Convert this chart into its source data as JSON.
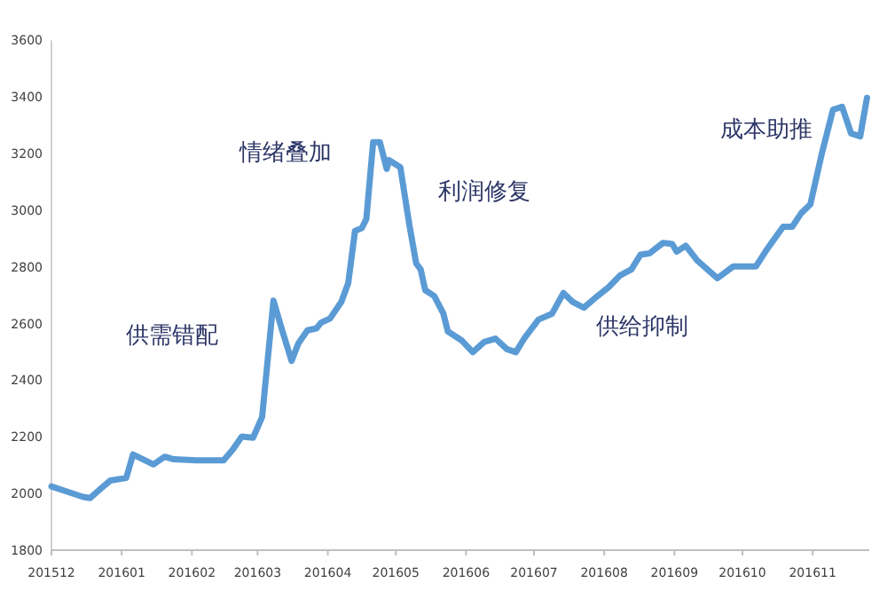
{
  "chart_data": {
    "type": "line",
    "x": [
      "2015-12-01",
      "2015-12-07",
      "2015-12-15",
      "2015-12-18",
      "2015-12-23",
      "2015-12-27",
      "2016-01-03",
      "2016-01-06",
      "2016-01-15",
      "2016-01-20",
      "2016-01-24",
      "2016-02-03",
      "2016-02-15",
      "2016-02-19",
      "2016-02-23",
      "2016-02-28",
      "2016-03-03",
      "2016-03-08",
      "2016-03-12",
      "2016-03-16",
      "2016-03-19",
      "2016-03-23",
      "2016-03-27",
      "2016-03-29",
      "2016-04-02",
      "2016-04-07",
      "2016-04-10",
      "2016-04-13",
      "2016-04-16",
      "2016-04-18",
      "2016-04-21",
      "2016-04-24",
      "2016-04-27",
      "2016-04-28",
      "2016-05-03",
      "2016-05-07",
      "2016-05-10",
      "2016-05-12",
      "2016-05-14",
      "2016-05-18",
      "2016-05-22",
      "2016-05-24",
      "2016-05-30",
      "2016-06-04",
      "2016-06-09",
      "2016-06-14",
      "2016-06-19",
      "2016-06-23",
      "2016-06-27",
      "2016-07-03",
      "2016-07-09",
      "2016-07-14",
      "2016-07-18",
      "2016-07-23",
      "2016-07-29",
      "2016-08-03",
      "2016-08-08",
      "2016-08-13",
      "2016-08-17",
      "2016-08-21",
      "2016-08-27",
      "2016-08-31",
      "2016-09-02",
      "2016-09-06",
      "2016-09-11",
      "2016-09-17",
      "2016-09-20",
      "2016-09-27",
      "2016-10-07",
      "2016-10-12",
      "2016-10-19",
      "2016-10-23",
      "2016-10-27",
      "2016-10-31",
      "2016-11-05",
      "2016-11-10",
      "2016-11-14",
      "2016-11-18",
      "2016-11-22",
      "2016-11-25"
    ],
    "series": [
      {
        "color": "#5b9bd5",
        "values": [
          2025,
          2009,
          1988,
          1984,
          2019,
          2046,
          2055,
          2138,
          2103,
          2130,
          2121,
          2117,
          2117,
          2155,
          2201,
          2197,
          2270,
          2681,
          2572,
          2468,
          2530,
          2576,
          2583,
          2603,
          2618,
          2677,
          2743,
          2927,
          2937,
          2969,
          3240,
          3240,
          3146,
          3177,
          3152,
          2948,
          2812,
          2791,
          2718,
          2697,
          2635,
          2572,
          2541,
          2499,
          2535,
          2547,
          2510,
          2499,
          2551,
          2614,
          2635,
          2708,
          2677,
          2656,
          2697,
          2729,
          2770,
          2791,
          2843,
          2848,
          2885,
          2881,
          2854,
          2875,
          2823,
          2781,
          2760,
          2802,
          2802,
          2864,
          2942,
          2942,
          2990,
          3021,
          3198,
          3355,
          3365,
          3271,
          3261,
          3397
        ]
      }
    ],
    "xlim": [
      "2015-12-01",
      "2016-11-26"
    ],
    "xticks": [
      {
        "value": "2015-12",
        "label": "201512"
      },
      {
        "value": "2016-01",
        "label": "201601"
      },
      {
        "value": "2016-02",
        "label": "201602"
      },
      {
        "value": "2016-03",
        "label": "201603"
      },
      {
        "value": "2016-04",
        "label": "201604"
      },
      {
        "value": "2016-05",
        "label": "201605"
      },
      {
        "value": "2016-06",
        "label": "201606"
      },
      {
        "value": "2016-07",
        "label": "201607"
      },
      {
        "value": "2016-08",
        "label": "201608"
      },
      {
        "value": "2016-09",
        "label": "201609"
      },
      {
        "value": "2016-10",
        "label": "201610"
      },
      {
        "value": "2016-11",
        "label": "201611"
      }
    ],
    "ylim": [
      1800,
      3600
    ],
    "yticks": [
      1800,
      2000,
      2200,
      2400,
      2600,
      2800,
      3000,
      3200,
      3400,
      3600
    ],
    "grid": false,
    "marker": "none",
    "line_style": "solid",
    "annotations": [
      "供需错配",
      "情绪叠加",
      "利润修复",
      "供给抑制",
      "成本助推"
    ]
  }
}
